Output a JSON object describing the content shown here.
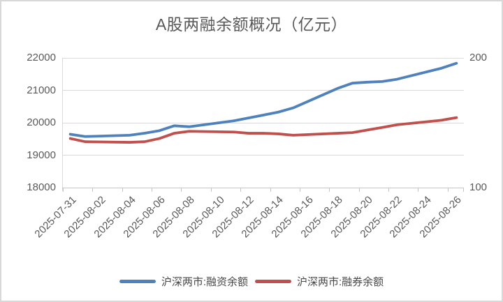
{
  "title": "A股两融余额概况（亿元）",
  "colors": {
    "grid": "#d9d9d9",
    "axis": "#c4c4c4",
    "tick_text": "#595959",
    "legend_text": "#474747",
    "border": "#d8d8d8",
    "financing_line": "#4f81bd",
    "securities_lending_line": "#c0504d"
  },
  "chart_data": {
    "type": "line",
    "title": "A股两融余额概况（亿元）",
    "grid": true,
    "legend_position": "bottom",
    "x_axis": {
      "start_date": "2025-07-31",
      "end_date": "2025-08-26",
      "total_day_slots": 27,
      "tick_labels": [
        "2025-07-31",
        "2025-08-02",
        "2025-08-04",
        "2025-08-06",
        "2025-08-08",
        "2025-08-10",
        "2025-08-12",
        "2025-08-14",
        "2025-08-16",
        "2025-08-18",
        "2025-08-20",
        "2025-08-22",
        "2025-08-24",
        "2025-08-26"
      ],
      "label_rotation_deg": -45
    },
    "y_axis_left": {
      "min": 18000,
      "max": 22000,
      "tick_labels": [
        22000,
        21000,
        20000,
        19000,
        18000
      ]
    },
    "y_axis_right": {
      "min": 100,
      "max": 200,
      "tick_labels": [
        200,
        100
      ]
    },
    "series": [
      {
        "name": "沪深两市:融资余额",
        "axis": "left",
        "color": "#4f81bd",
        "dates": [
          "2025-07-31",
          "2025-08-01",
          "2025-08-04",
          "2025-08-05",
          "2025-08-06",
          "2025-08-07",
          "2025-08-08",
          "2025-08-11",
          "2025-08-12",
          "2025-08-13",
          "2025-08-14",
          "2025-08-15",
          "2025-08-18",
          "2025-08-19",
          "2025-08-20",
          "2025-08-21",
          "2025-08-22",
          "2025-08-25",
          "2025-08-26"
        ],
        "values": [
          19690,
          19620,
          19660,
          19720,
          19800,
          19950,
          19920,
          20100,
          20190,
          20280,
          20370,
          20500,
          21100,
          21260,
          21290,
          21310,
          21380,
          21720,
          21870
        ]
      },
      {
        "name": "沪深两市:融券余额",
        "axis": "right",
        "color": "#c0504d",
        "dates": [
          "2025-07-31",
          "2025-08-01",
          "2025-08-04",
          "2025-08-05",
          "2025-08-06",
          "2025-08-07",
          "2025-08-08",
          "2025-08-11",
          "2025-08-12",
          "2025-08-13",
          "2025-08-14",
          "2025-08-15",
          "2025-08-18",
          "2025-08-19",
          "2025-08-20",
          "2025-08-21",
          "2025-08-22",
          "2025-08-25",
          "2025-08-26"
        ],
        "values": [
          139,
          136.5,
          136,
          136.5,
          139,
          143,
          144.5,
          144,
          143,
          143,
          142.5,
          141.5,
          143,
          143.5,
          145.5,
          147.5,
          149.5,
          153,
          155
        ]
      }
    ]
  }
}
